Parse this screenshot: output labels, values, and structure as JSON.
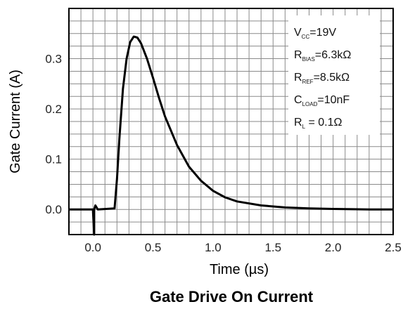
{
  "chart_data": {
    "type": "line",
    "title": "Gate Drive On Current",
    "xlabel": "Time (µs)",
    "ylabel": "Gate Current (A)",
    "xlim": [
      -0.2,
      2.5
    ],
    "ylim": [
      -0.05,
      0.4
    ],
    "grid": true,
    "x_ticks": [
      0.0,
      0.5,
      1.0,
      1.5,
      2.0,
      2.5
    ],
    "x_tick_labels": [
      "0.0",
      "0.5",
      "1.0",
      "1.5",
      "2.0",
      "2.5"
    ],
    "y_ticks": [
      0.0,
      0.1,
      0.2,
      0.3
    ],
    "y_tick_labels": [
      "0.0",
      "0.1",
      "0.2",
      "0.3"
    ],
    "series": [
      {
        "color": "#000000",
        "x": [
          -0.2,
          0.0,
          0.01,
          0.01,
          0.02,
          0.03,
          0.04,
          0.18,
          0.2,
          0.22,
          0.25,
          0.28,
          0.31,
          0.34,
          0.37,
          0.4,
          0.45,
          0.5,
          0.55,
          0.6,
          0.7,
          0.8,
          0.9,
          1.0,
          1.1,
          1.2,
          1.4,
          1.6,
          1.8,
          2.0,
          2.3,
          2.5
        ],
        "y": [
          0.0,
          0.0,
          -0.05,
          0.0,
          0.008,
          0.004,
          0.0,
          0.002,
          0.06,
          0.14,
          0.24,
          0.3,
          0.333,
          0.344,
          0.342,
          0.331,
          0.3,
          0.262,
          0.222,
          0.185,
          0.128,
          0.085,
          0.057,
          0.037,
          0.024,
          0.016,
          0.008,
          0.004,
          0.002,
          0.001,
          0.0,
          0.0
        ]
      }
    ],
    "annotations": [
      {
        "main": "V",
        "sub": "CC",
        "rest": "=19V"
      },
      {
        "main": "R",
        "sub": "BIAS",
        "rest": "=6.3kΩ"
      },
      {
        "main": "R",
        "sub": "REF",
        "rest": "=8.5kΩ"
      },
      {
        "main": "C",
        "sub": "LOAD",
        "rest": "=10nF"
      },
      {
        "main": "R",
        "sub": "L",
        "rest": " = 0.1Ω"
      }
    ]
  }
}
